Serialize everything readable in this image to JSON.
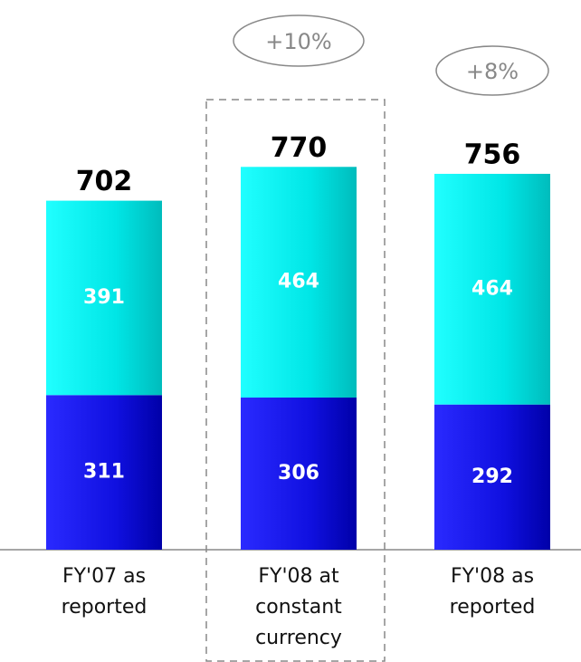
{
  "chart_data": {
    "type": "stacked_bar",
    "categories": [
      "FY'07 as reported",
      "FY'08 at constant currency",
      "FY'08 as reported"
    ],
    "series": [
      {
        "values": [
          311,
          306,
          292
        ],
        "color": "#1a1aee"
      },
      {
        "values": [
          391,
          464,
          464
        ],
        "color": "#00e6e6"
      }
    ],
    "totals": [
      702,
      770,
      756
    ],
    "annotations": [
      "+10%",
      "+8%"
    ]
  }
}
